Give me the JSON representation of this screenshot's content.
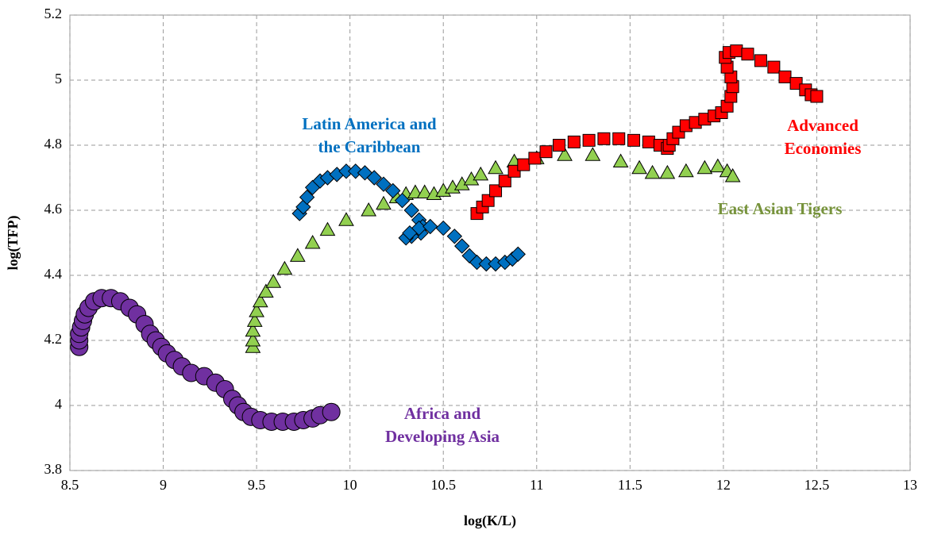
{
  "chart_data": {
    "type": "scatter",
    "x_label": "log(K/L)",
    "y_label": "log(TFP)",
    "xlim": [
      8.5,
      13
    ],
    "xticks": [
      8.5,
      9,
      9.5,
      10,
      10.5,
      11,
      11.5,
      12,
      12.5,
      13
    ],
    "ylim": [
      3.8,
      5.2
    ],
    "yticks": [
      3.8,
      4,
      4.2,
      4.4,
      4.6,
      4.8,
      5,
      5.2
    ],
    "grid": true,
    "series": [
      {
        "label": [
          "Africa and",
          "Developing Asia"
        ],
        "color": "#7030a0",
        "label_color": "#7030a0",
        "marker": "circle",
        "x": [
          8.55,
          8.55,
          8.55,
          8.56,
          8.57,
          8.58,
          8.6,
          8.63,
          8.67,
          8.72,
          8.77,
          8.82,
          8.86,
          8.9,
          8.93,
          8.96,
          8.99,
          9.02,
          9.06,
          9.1,
          9.15,
          9.22,
          9.28,
          9.33,
          9.37,
          9.4,
          9.43,
          9.47,
          9.52,
          9.58,
          9.64,
          9.7,
          9.75,
          9.8,
          9.84,
          9.9
        ],
        "values": [
          4.18,
          4.2,
          4.22,
          4.24,
          4.26,
          4.28,
          4.3,
          4.32,
          4.33,
          4.33,
          4.32,
          4.3,
          4.28,
          4.25,
          4.22,
          4.2,
          4.18,
          4.16,
          4.14,
          4.12,
          4.1,
          4.09,
          4.07,
          4.05,
          4.02,
          4.0,
          3.98,
          3.965,
          3.955,
          3.95,
          3.95,
          3.95,
          3.955,
          3.96,
          3.97,
          3.98
        ]
      },
      {
        "label": [
          "East Asian Tigers"
        ],
        "color": "#92d050",
        "label_color": "#77933c",
        "marker": "triangle",
        "x": [
          9.48,
          9.48,
          9.48,
          9.49,
          9.5,
          9.52,
          9.55,
          9.59,
          9.65,
          9.72,
          9.8,
          9.88,
          9.98,
          10.1,
          10.18,
          10.25,
          10.3,
          10.35,
          10.4,
          10.45,
          10.5,
          10.55,
          10.6,
          10.65,
          10.7,
          10.78,
          10.88,
          11.0,
          11.15,
          11.3,
          11.45,
          11.55,
          11.62,
          11.7,
          11.8,
          11.9,
          11.97,
          12.02,
          12.05
        ],
        "values": [
          4.18,
          4.2,
          4.23,
          4.26,
          4.29,
          4.32,
          4.35,
          4.38,
          4.42,
          4.46,
          4.5,
          4.54,
          4.57,
          4.6,
          4.62,
          4.64,
          4.65,
          4.655,
          4.655,
          4.65,
          4.66,
          4.67,
          4.68,
          4.695,
          4.71,
          4.73,
          4.75,
          4.76,
          4.77,
          4.77,
          4.75,
          4.73,
          4.715,
          4.715,
          4.72,
          4.73,
          4.735,
          4.72,
          4.705
        ]
      },
      {
        "label": [
          "Latin America and",
          "the Caribbean"
        ],
        "color": "#0070c0",
        "label_color": "#0070c0",
        "marker": "diamond",
        "x": [
          9.73,
          9.75,
          9.77,
          9.8,
          9.84,
          9.88,
          9.93,
          9.98,
          10.03,
          10.08,
          10.13,
          10.18,
          10.23,
          10.28,
          10.33,
          10.37,
          10.39,
          10.38,
          10.33,
          10.3,
          10.32,
          10.37,
          10.43,
          10.5,
          10.56,
          10.6,
          10.64,
          10.68,
          10.73,
          10.78,
          10.83,
          10.87,
          10.9
        ],
        "values": [
          4.59,
          4.61,
          4.64,
          4.67,
          4.69,
          4.7,
          4.71,
          4.72,
          4.72,
          4.715,
          4.7,
          4.68,
          4.66,
          4.63,
          4.6,
          4.57,
          4.55,
          4.53,
          4.52,
          4.515,
          4.53,
          4.545,
          4.55,
          4.545,
          4.52,
          4.49,
          4.46,
          4.44,
          4.435,
          4.435,
          4.44,
          4.45,
          4.465
        ]
      },
      {
        "label": [
          "Advanced",
          "Economies"
        ],
        "color": "#ff0000",
        "label_color": "#ff0000",
        "marker": "square",
        "x": [
          10.68,
          10.71,
          10.74,
          10.78,
          10.83,
          10.88,
          10.93,
          10.99,
          11.05,
          11.12,
          11.2,
          11.28,
          11.36,
          11.44,
          11.52,
          11.6,
          11.66,
          11.7,
          11.71,
          11.73,
          11.76,
          11.8,
          11.85,
          11.9,
          11.95,
          11.99,
          12.02,
          12.04,
          12.05,
          12.04,
          12.02,
          12.01,
          12.03,
          12.07,
          12.13,
          12.2,
          12.27,
          12.33,
          12.39,
          12.44,
          12.47,
          12.5
        ],
        "values": [
          4.59,
          4.61,
          4.63,
          4.66,
          4.69,
          4.72,
          4.74,
          4.76,
          4.78,
          4.8,
          4.81,
          4.815,
          4.82,
          4.82,
          4.815,
          4.81,
          4.8,
          4.79,
          4.8,
          4.82,
          4.84,
          4.86,
          4.87,
          4.88,
          4.89,
          4.9,
          4.92,
          4.95,
          4.98,
          5.01,
          5.04,
          5.07,
          5.085,
          5.09,
          5.08,
          5.06,
          5.04,
          5.01,
          4.99,
          4.97,
          4.955,
          4.95
        ]
      }
    ]
  }
}
